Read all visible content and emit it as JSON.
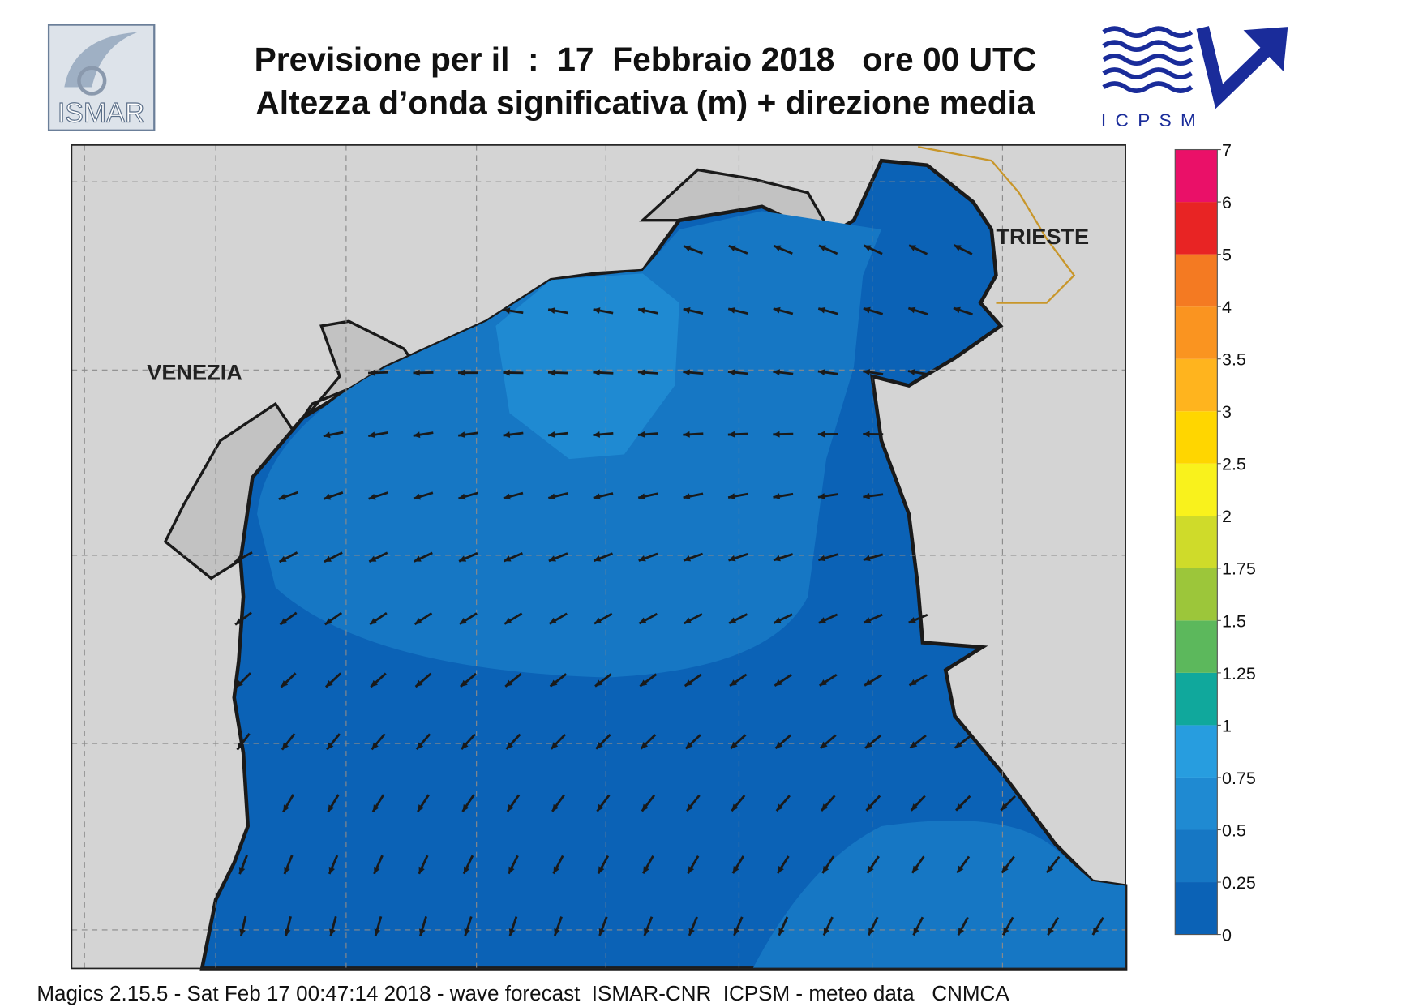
{
  "header": {
    "title": "Previsione per il  :  17  Febbraio 2018   ore 00 UTC",
    "subtitle": "Altezza d’onda significativa (m) + direzione media"
  },
  "logos": {
    "left": "ISMAR",
    "right": "ICPSM"
  },
  "map": {
    "labels": [
      "VENEZIA",
      "TRIESTE"
    ]
  },
  "legend": {
    "levels": [
      0,
      0.25,
      0.5,
      0.75,
      1,
      1.25,
      1.5,
      1.75,
      2,
      2.5,
      3,
      3.5,
      4,
      5,
      6,
      7
    ],
    "colors": [
      "#0b62b6",
      "#1677c4",
      "#1f8ad2",
      "#279ddf",
      "#10a89c",
      "#5cb85c",
      "#9cc63a",
      "#cfdb2a",
      "#f9f21c",
      "#ffd600",
      "#ffb41e",
      "#fa9420",
      "#f47a22",
      "#e82424",
      "#ea1068"
    ]
  },
  "footer": "Magics 2.15.5 - Sat Feb 17 00:47:14 2018 - wave forecast  ISMAR-CNR  ICPSM - meteo data   CNMCA"
}
